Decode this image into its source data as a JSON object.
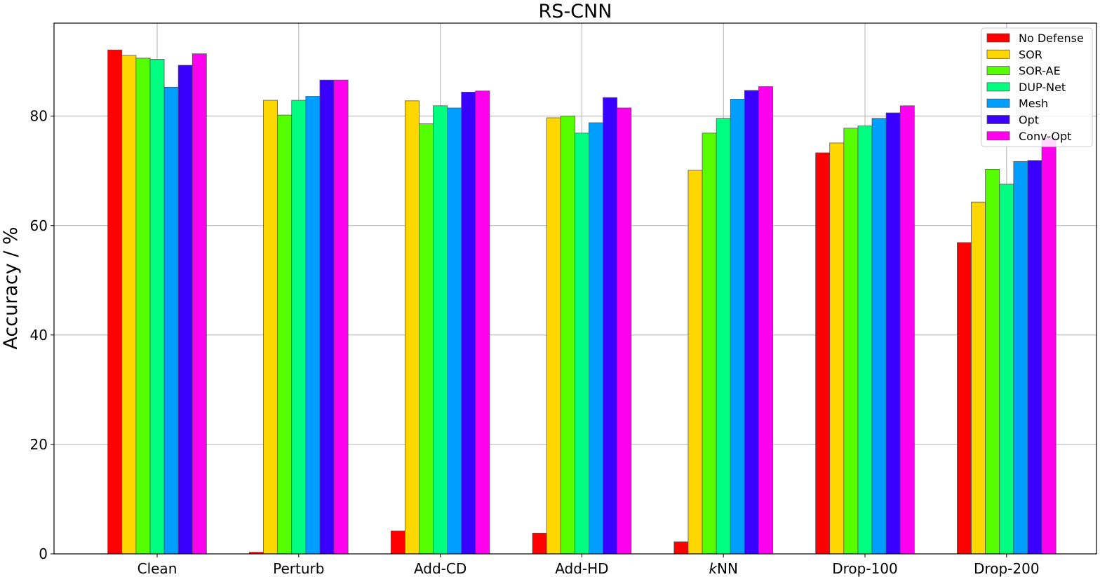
{
  "chart_data": {
    "type": "bar",
    "title": "RS-CNN",
    "xlabel": "",
    "ylabel": "Accuracy / %",
    "ylim": [
      0,
      97
    ],
    "yticks": [
      0,
      20,
      40,
      60,
      80
    ],
    "grid": true,
    "legend_position": "top-right",
    "categories": [
      "Clean",
      "Perturb",
      "Add-CD",
      "Add-HD",
      "kNN",
      "Drop-100",
      "Drop-200"
    ],
    "series": [
      {
        "name": "No Defense",
        "color": "#ff0000",
        "values": [
          92.1,
          0.3,
          4.2,
          3.8,
          2.2,
          73.3,
          56.9
        ]
      },
      {
        "name": "SOR",
        "color": "#ffd700",
        "values": [
          91.1,
          82.9,
          82.8,
          79.7,
          70.1,
          75.1,
          64.3
        ]
      },
      {
        "name": "SOR-AE",
        "color": "#55ff00",
        "values": [
          90.6,
          80.2,
          78.6,
          80.0,
          76.9,
          77.8,
          70.3
        ]
      },
      {
        "name": "DUP-Net",
        "color": "#00ff80",
        "values": [
          90.4,
          82.9,
          81.9,
          76.9,
          79.6,
          78.2,
          67.6
        ]
      },
      {
        "name": "Mesh",
        "color": "#009fff",
        "values": [
          85.3,
          83.6,
          81.5,
          78.8,
          83.1,
          79.6,
          71.7
        ]
      },
      {
        "name": "Opt",
        "color": "#3a00ff",
        "values": [
          89.3,
          86.6,
          84.4,
          83.4,
          84.7,
          80.6,
          71.9
        ]
      },
      {
        "name": "Conv-Opt",
        "color": "#ff00ee",
        "values": [
          91.4,
          86.6,
          84.6,
          81.5,
          85.4,
          81.9,
          76.0
        ]
      }
    ]
  }
}
